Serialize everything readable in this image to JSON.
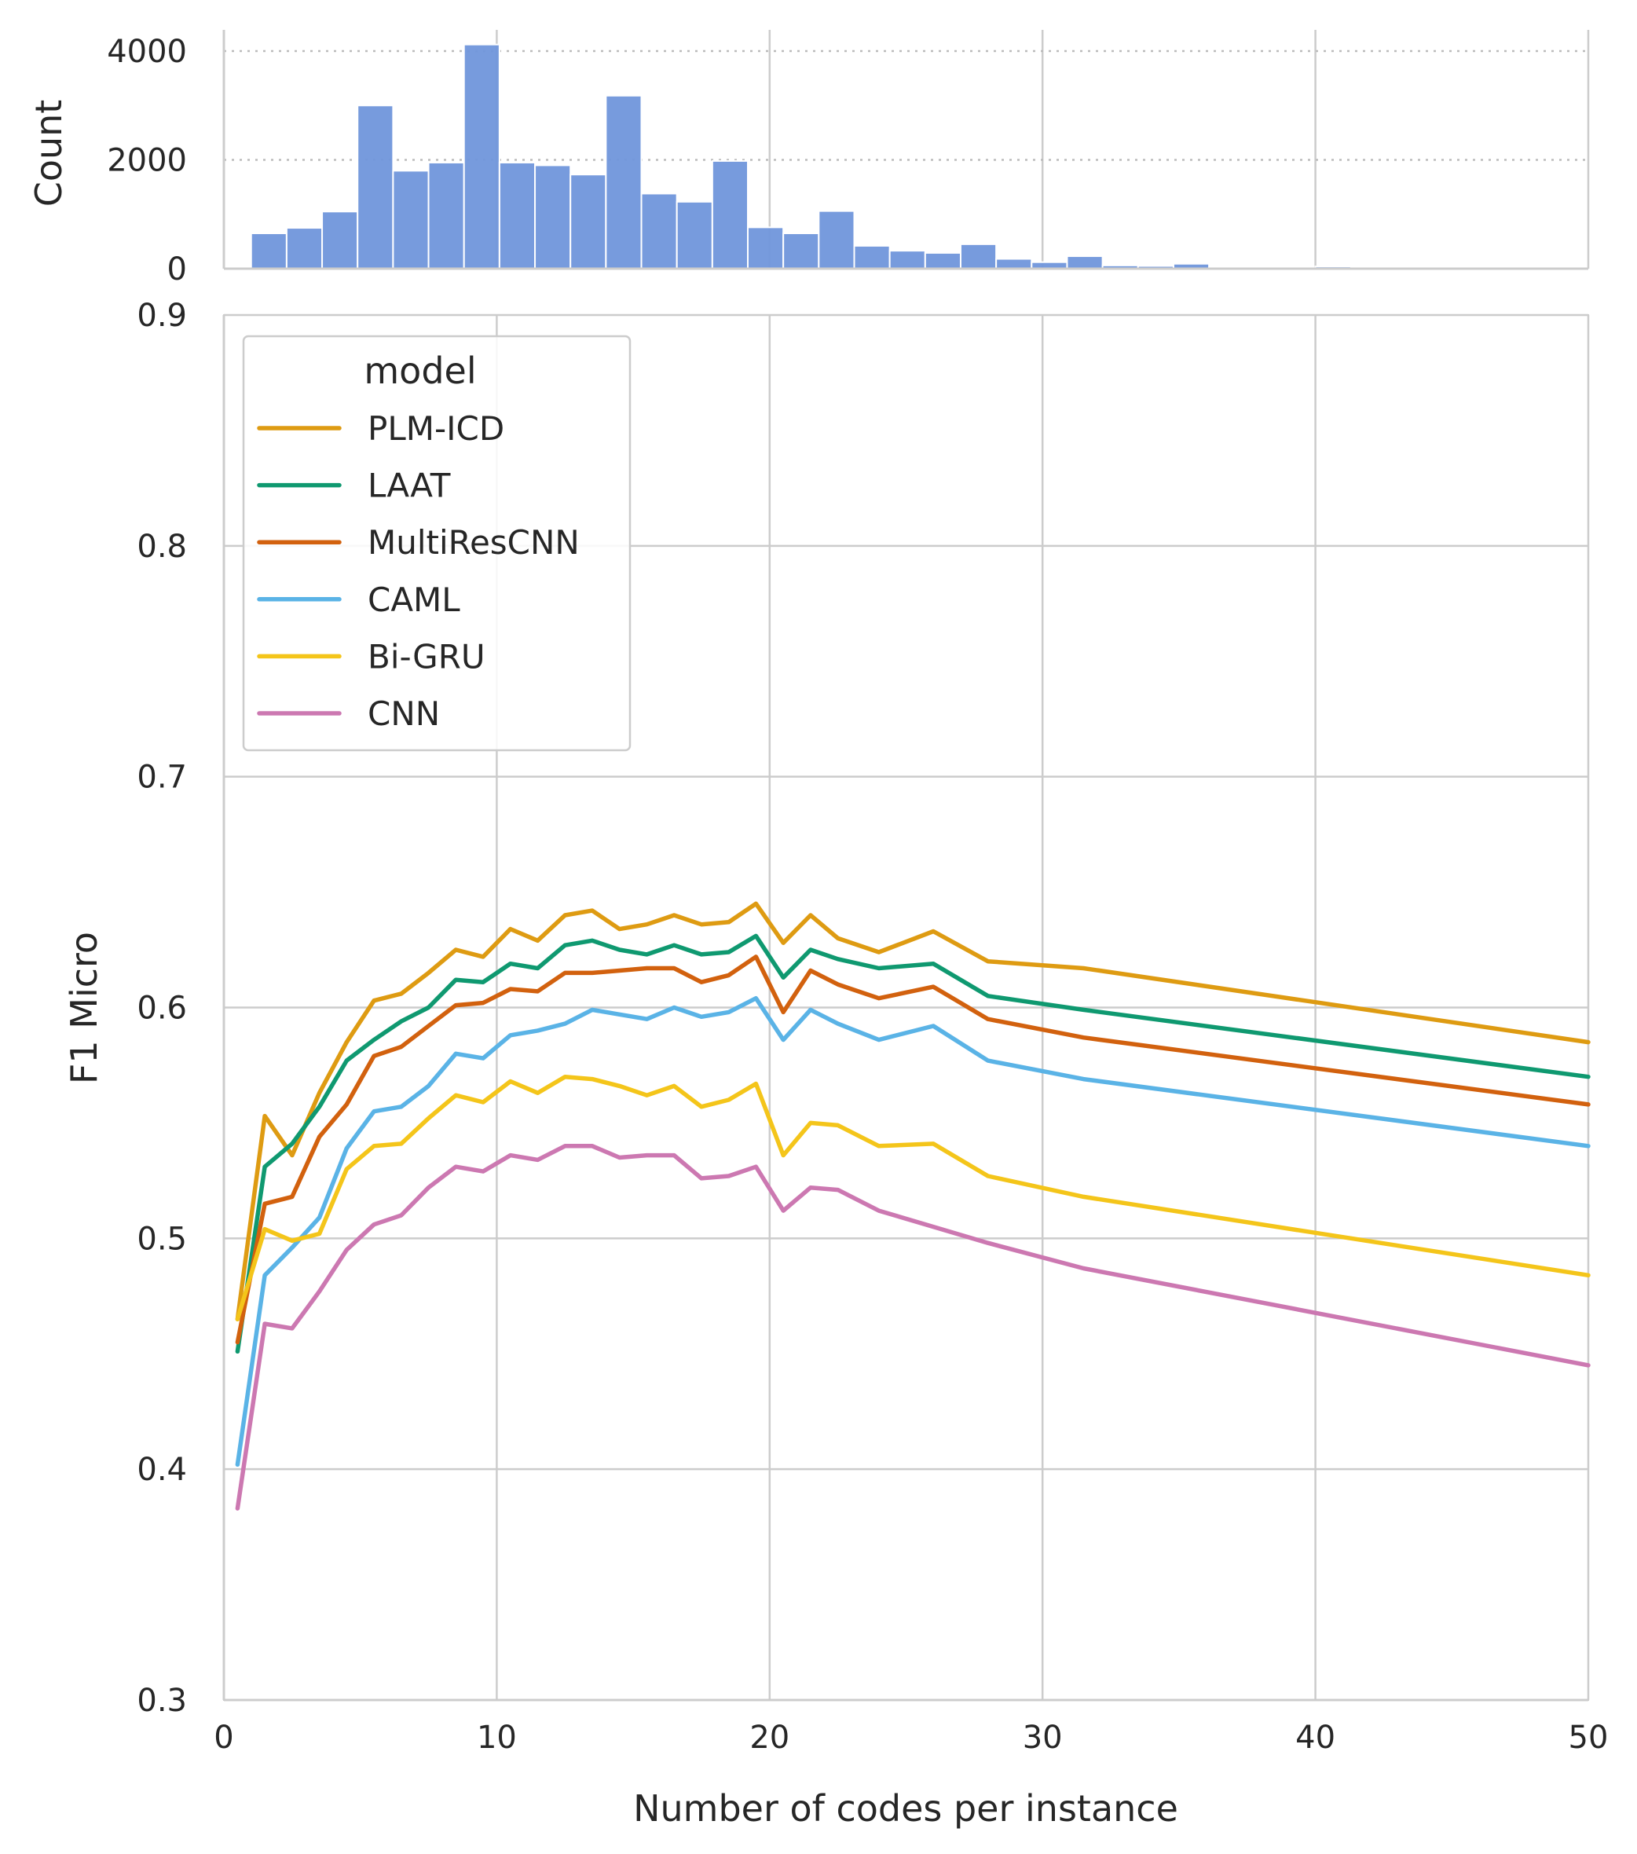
{
  "chart_data": [
    {
      "type": "bar",
      "ylabel": "Count",
      "xlim": [
        0,
        50
      ],
      "ylim": [
        0,
        4200
      ],
      "yticks": [
        0,
        2000,
        4000
      ],
      "grid": "dotted horizontal, solid vertical",
      "bar_color": "#7096DB",
      "bin_width": 1.3,
      "bins": [
        {
          "x0": 1.0,
          "count": 650
        },
        {
          "x0": 2.3,
          "count": 750
        },
        {
          "x0": 3.6,
          "count": 1050
        },
        {
          "x0": 4.9,
          "count": 3000
        },
        {
          "x0": 6.2,
          "count": 1800
        },
        {
          "x0": 7.5,
          "count": 1950
        },
        {
          "x0": 8.8,
          "count": 4120
        },
        {
          "x0": 10.1,
          "count": 1950
        },
        {
          "x0": 11.4,
          "count": 1900
        },
        {
          "x0": 12.7,
          "count": 1730
        },
        {
          "x0": 14.0,
          "count": 3180
        },
        {
          "x0": 15.3,
          "count": 1380
        },
        {
          "x0": 16.6,
          "count": 1230
        },
        {
          "x0": 17.9,
          "count": 1980
        },
        {
          "x0": 19.2,
          "count": 760
        },
        {
          "x0": 20.5,
          "count": 650
        },
        {
          "x0": 21.8,
          "count": 1060
        },
        {
          "x0": 23.1,
          "count": 420
        },
        {
          "x0": 24.4,
          "count": 330
        },
        {
          "x0": 25.7,
          "count": 290
        },
        {
          "x0": 27.0,
          "count": 450
        },
        {
          "x0": 28.3,
          "count": 180
        },
        {
          "x0": 29.6,
          "count": 120
        },
        {
          "x0": 30.9,
          "count": 230
        },
        {
          "x0": 32.2,
          "count": 60
        },
        {
          "x0": 33.5,
          "count": 50
        },
        {
          "x0": 34.8,
          "count": 90
        },
        {
          "x0": 36.1,
          "count": 15
        },
        {
          "x0": 37.4,
          "count": 10
        },
        {
          "x0": 38.7,
          "count": 8
        },
        {
          "x0": 40.0,
          "count": 40
        },
        {
          "x0": 41.3,
          "count": 5
        }
      ]
    },
    {
      "type": "line",
      "xlabel": "Number of codes per instance",
      "ylabel": "F1 Micro",
      "xlim": [
        0,
        50
      ],
      "ylim": [
        0.3,
        0.9
      ],
      "xticks": [
        0,
        10,
        20,
        30,
        40,
        50
      ],
      "yticks": [
        "0.3",
        "0.4",
        "0.5",
        "0.6",
        "0.7",
        "0.8",
        "0.9"
      ],
      "grid": true,
      "legend": {
        "title": "model",
        "placement": "upper-left"
      },
      "x": [
        0.5,
        1.5,
        2.5,
        3.5,
        4.5,
        5.5,
        6.5,
        7.5,
        8.5,
        9.5,
        10.5,
        11.5,
        12.5,
        13.5,
        14.5,
        15.5,
        16.5,
        17.5,
        18.5,
        19.5,
        20.5,
        21.5,
        22.5,
        24.0,
        26.0,
        28.0,
        31.5,
        50.0
      ],
      "series": [
        {
          "name": "PLM-ICD",
          "color": "#DE9B12",
          "values": [
            0.465,
            0.553,
            0.536,
            0.563,
            0.585,
            0.603,
            0.606,
            0.615,
            0.625,
            0.622,
            0.634,
            0.629,
            0.64,
            0.642,
            0.634,
            0.636,
            0.64,
            0.636,
            0.637,
            0.645,
            0.628,
            0.64,
            0.63,
            0.624,
            0.633,
            0.62,
            0.617,
            0.585
          ]
        },
        {
          "name": "LAAT",
          "color": "#0F9970",
          "values": [
            0.451,
            0.531,
            0.541,
            0.557,
            0.577,
            0.586,
            0.594,
            0.6,
            0.612,
            0.611,
            0.619,
            0.617,
            0.627,
            0.629,
            0.625,
            0.623,
            0.627,
            0.623,
            0.624,
            0.631,
            0.613,
            0.625,
            0.621,
            0.617,
            0.619,
            0.605,
            0.599,
            0.57
          ]
        },
        {
          "name": "MultiResCNN",
          "color": "#D2610E",
          "values": [
            0.455,
            0.515,
            0.518,
            0.544,
            0.558,
            0.579,
            0.583,
            0.592,
            0.601,
            0.602,
            0.608,
            0.607,
            0.615,
            0.615,
            0.616,
            0.617,
            0.617,
            0.611,
            0.614,
            0.622,
            0.598,
            0.616,
            0.61,
            0.604,
            0.609,
            0.595,
            0.587,
            0.558
          ]
        },
        {
          "name": "CAML",
          "color": "#5AB3E6",
          "values": [
            0.402,
            0.484,
            0.496,
            0.509,
            0.539,
            0.555,
            0.557,
            0.566,
            0.58,
            0.578,
            0.588,
            0.59,
            0.593,
            0.599,
            0.597,
            0.595,
            0.6,
            0.596,
            0.598,
            0.604,
            0.586,
            0.599,
            0.593,
            0.586,
            0.592,
            0.577,
            0.569,
            0.54
          ]
        },
        {
          "name": "Bi-GRU",
          "color": "#F4C51A",
          "values": [
            0.465,
            0.504,
            0.499,
            0.502,
            0.53,
            0.54,
            0.541,
            0.552,
            0.562,
            0.559,
            0.568,
            0.563,
            0.57,
            0.569,
            0.566,
            0.562,
            0.566,
            0.557,
            0.56,
            0.567,
            0.536,
            0.55,
            0.549,
            0.54,
            0.541,
            0.527,
            0.518,
            0.484
          ]
        },
        {
          "name": "CNN",
          "color": "#CC78B1",
          "values": [
            0.383,
            0.463,
            0.461,
            0.477,
            0.495,
            0.506,
            0.51,
            0.522,
            0.531,
            0.529,
            0.536,
            0.534,
            0.54,
            0.54,
            0.535,
            0.536,
            0.536,
            0.526,
            0.527,
            0.531,
            0.512,
            0.522,
            0.521,
            0.512,
            0.505,
            0.498,
            0.487,
            0.445
          ]
        }
      ]
    }
  ]
}
